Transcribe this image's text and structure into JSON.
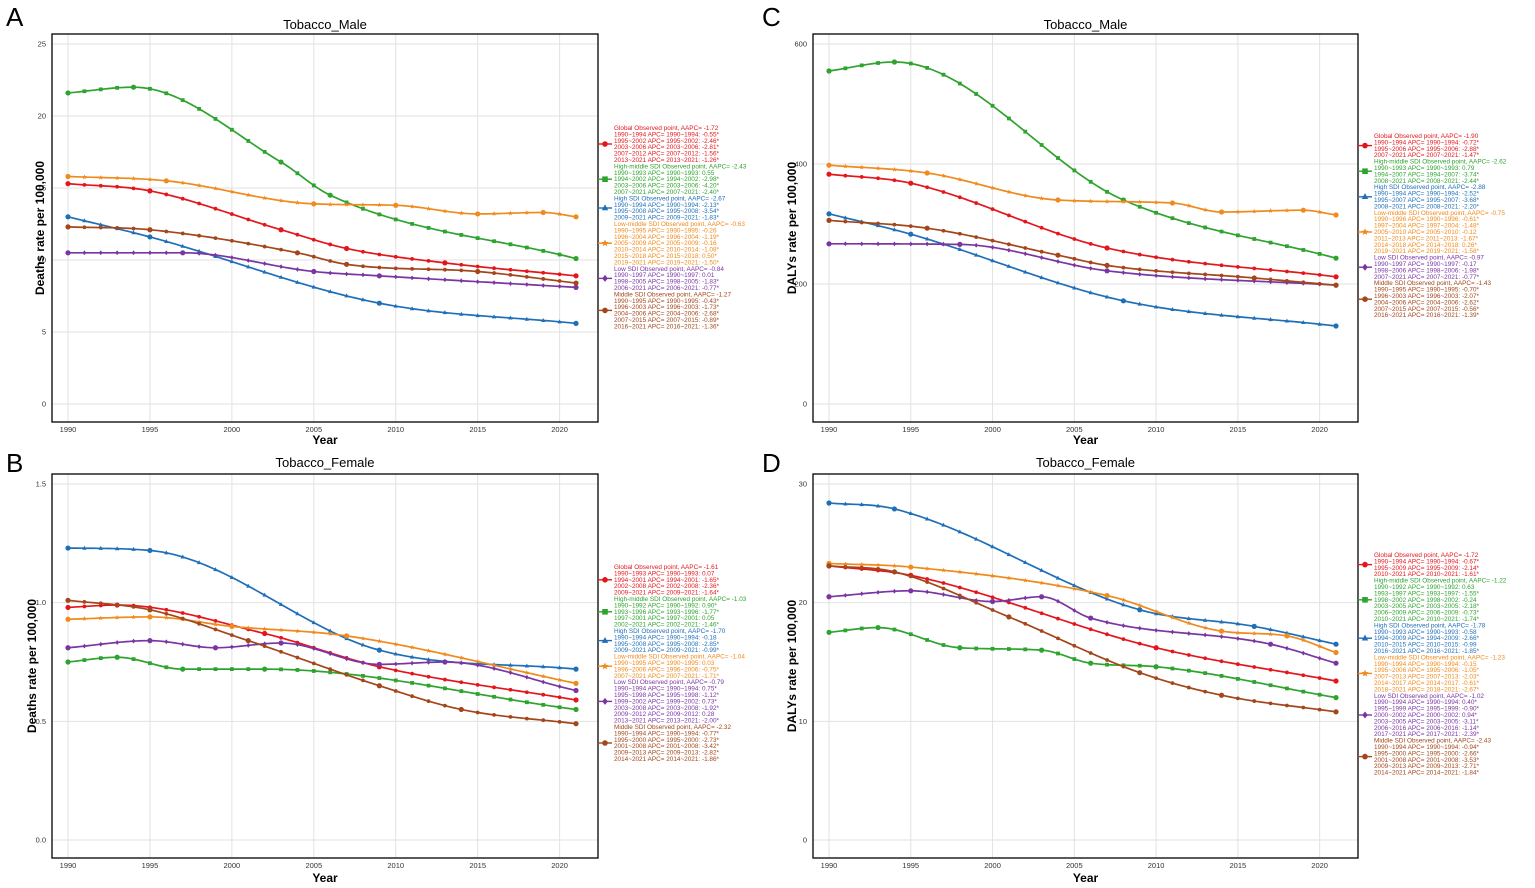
{
  "colors": {
    "Global": "#e4161c",
    "High-middle SDI": "#2ea32e",
    "High SDI": "#1f6fb8",
    "Low-middle SDI": "#f08a1c",
    "Low SDI": "#7a35a3",
    "Middle SDI": "#a3461a"
  },
  "chart_data": [
    {
      "id": "A",
      "panel_label": "A",
      "type": "line",
      "title": "Tobacco_Male",
      "xlabel": "Year",
      "ylabel": "Deaths rate per 100,000",
      "xlim": [
        1990,
        2021
      ],
      "ylim": [
        0,
        25
      ],
      "xticks": [
        1990,
        1995,
        2000,
        2005,
        2010,
        2015,
        2020
      ],
      "yticks": [
        0,
        5,
        10,
        15,
        20,
        25
      ],
      "series": [
        {
          "name": "Global",
          "x": [
            1990,
            1995,
            2003,
            2007,
            2013,
            2021
          ],
          "y": [
            15.3,
            14.8,
            12.1,
            10.8,
            9.8,
            8.9
          ]
        },
        {
          "name": "High-middle SDI",
          "x": [
            1990,
            1994,
            2003,
            2006,
            2021
          ],
          "y": [
            21.6,
            22.0,
            16.8,
            14.5,
            10.1
          ]
        },
        {
          "name": "High SDI",
          "x": [
            1990,
            1995,
            2009,
            2021
          ],
          "y": [
            13.0,
            11.6,
            7.0,
            5.6
          ]
        },
        {
          "name": "Low-middle SDI",
          "x": [
            1990,
            1996,
            2005,
            2010,
            2015,
            2019,
            2021
          ],
          "y": [
            15.8,
            15.5,
            13.9,
            13.8,
            13.2,
            13.3,
            13.0
          ]
        },
        {
          "name": "Low SDI",
          "x": [
            1990,
            1997,
            2005,
            2009,
            2021
          ],
          "y": [
            10.5,
            10.5,
            9.2,
            8.9,
            8.1
          ]
        },
        {
          "name": "Middle SDI",
          "x": [
            1990,
            1995,
            2004,
            2007,
            2015,
            2021
          ],
          "y": [
            12.3,
            12.1,
            10.5,
            9.7,
            9.2,
            8.4
          ]
        }
      ],
      "legend": [
        {
          "color": "Global",
          "lines": [
            "Global Observed point, AAPC= -1.72",
            "1990~1994 APC= 1990~1994: -0.55*",
            "1995~2002 APC= 1995~2002: -2.46*",
            "2003~2006 APC= 2003~2006: -2.81*",
            "2007~2012 APC= 2007~2012: -1.56*",
            "2013~2021 APC= 2013~2021: -1.26*"
          ]
        },
        {
          "color": "High-middle SDI",
          "lines": [
            "High-middle SDI Observed point, AAPC= -2.43",
            "1990~1993 APC= 1990~1993: 0.55",
            "1994~2002 APC= 1994~2002: -2.98*",
            "2003~2006 APC= 2003~2006: -4.20*",
            "2007~2021 APC= 2007~2021: -2.40*"
          ]
        },
        {
          "color": "High SDI",
          "lines": [
            "High SDI Observed point, AAPC= -2.67",
            "1990~1994 APC= 1990~1994: -2.13*",
            "1995~2008 APC= 1995~2008: -3.54*",
            "2009~2021 APC= 2009~2021: -1.83*"
          ]
        },
        {
          "color": "Low-middle SDI",
          "lines": [
            "Low-middle SDI Observed point, AAPC= -0.63",
            "1990~1995 APC= 1990~1995: -0.26",
            "1996~2004 APC= 1996~2004: -1.19*",
            "2005~2009 APC= 2005~2009: -0.16",
            "2010~2014 APC= 2010~2014: -1.08*",
            "2015~2018 APC= 2015~2018: 0.50*",
            "2019~2021 APC= 2019~2021: -1.50*"
          ]
        },
        {
          "color": "Low SDI",
          "lines": [
            "Low SDI Observed point, AAPC= -0.84",
            "1990~1997 APC= 1990~1997: 0.01",
            "1998~2005 APC= 1998~2005: -1.83*",
            "2006~2021 APC= 2006~2021: -0.77*"
          ]
        },
        {
          "color": "Middle SDI",
          "lines": [
            "Middle SDI Observed point, AAPC= -1.27",
            "1990~1995 APC= 1990~1995: -0.43*",
            "1996~2003 APC= 1996~2003: -1.73*",
            "2004~2006 APC= 2004~2006: -2.68*",
            "2007~2015 APC= 2007~2015: -0.89*",
            "2016~2021 APC= 2016~2021: -1.36*"
          ]
        }
      ]
    },
    {
      "id": "C",
      "panel_label": "C",
      "type": "line",
      "title": "Tobacco_Male",
      "xlabel": "Year",
      "ylabel": "DALYs rate per 100,000",
      "xlim": [
        1990,
        2021
      ],
      "ylim": [
        0,
        600
      ],
      "xticks": [
        1990,
        1995,
        2000,
        2005,
        2010,
        2015,
        2020
      ],
      "yticks": [
        0,
        200,
        400,
        600
      ],
      "series": [
        {
          "name": "Global",
          "x": [
            1990,
            1995,
            2007,
            2021
          ],
          "y": [
            383,
            368,
            260,
            212
          ]
        },
        {
          "name": "High-middle SDI",
          "x": [
            1990,
            1994,
            2008,
            2021
          ],
          "y": [
            555,
            570,
            340,
            243
          ]
        },
        {
          "name": "High SDI",
          "x": [
            1990,
            1995,
            2008,
            2021
          ],
          "y": [
            317,
            283,
            172,
            130
          ]
        },
        {
          "name": "Low-middle SDI",
          "x": [
            1990,
            1996,
            2004,
            2011,
            2014,
            2019,
            2021
          ],
          "y": [
            398,
            385,
            340,
            335,
            320,
            323,
            315
          ]
        },
        {
          "name": "Low SDI",
          "x": [
            1990,
            1998,
            2007,
            2021
          ],
          "y": [
            267,
            266,
            222,
            198
          ]
        },
        {
          "name": "Middle SDI",
          "x": [
            1990,
            1996,
            2004,
            2007,
            2016,
            2021
          ],
          "y": [
            306,
            293,
            248,
            231,
            210,
            198
          ]
        }
      ],
      "legend": [
        {
          "color": "Global",
          "lines": [
            "Global Observed point, AAPC= -1.90",
            "1990~1994 APC= 1990~1994: -0.72*",
            "1995~2006 APC= 1995~2006: -2.88*",
            "2007~2021 APC= 2007~2021: -1.47*"
          ]
        },
        {
          "color": "High-middle SDI",
          "lines": [
            "High-middle SDI Observed point, AAPC= -2.62",
            "1990~1993 APC= 1990~1993: 0.79",
            "1994~2007 APC= 1994~2007: -3.74*",
            "2008~2021 APC= 2008~2021: -2.44*"
          ]
        },
        {
          "color": "High SDI",
          "lines": [
            "High SDI Observed point, AAPC= -2.88",
            "1990~1994 APC= 1990~1994: -2.52*",
            "1995~2007 APC= 1995~2007: -3.68*",
            "2008~2021 APC= 2008~2021: -2.20*"
          ]
        },
        {
          "color": "Low-middle SDI",
          "lines": [
            "Low-middle SDI Observed point, AAPC= -0.75",
            "1990~1996 APC= 1990~1996: -0.61*",
            "1997~2004 APC= 1997~2004: -1.48*",
            "2005~2010 APC= 2005~2010: -0.12",
            "2011~2013 APC= 2011~2013: -1.67*",
            "2014~2018 APC= 2014~2018: 0.26*",
            "2019~2021 APC= 2019~2021: -1.58*"
          ]
        },
        {
          "color": "Low SDI",
          "lines": [
            "Low SDI Observed point, AAPC= -0.97",
            "1990~1997 APC= 1990~1997: -0.17",
            "1998~2006 APC= 1998~2006: -1.98*",
            "2007~2021 APC= 2007~2021: -0.77*"
          ]
        },
        {
          "color": "Middle SDI",
          "lines": [
            "Middle SDI Observed point, AAPC= -1.43",
            "1990~1995 APC= 1990~1995: -0.70*",
            "1996~2003 APC= 1996~2003: -2.07*",
            "2004~2006 APC= 2004~2006: -2.62*",
            "2007~2015 APC= 2007~2015: -0.56*",
            "2016~2021 APC= 2016~2021: -1.39*"
          ]
        }
      ]
    },
    {
      "id": "B",
      "panel_label": "B",
      "type": "line",
      "title": "Tobacco_Female",
      "xlabel": "Year",
      "ylabel": "Deaths rate per 100,000",
      "xlim": [
        1990,
        2021
      ],
      "ylim": [
        0,
        1.5
      ],
      "xticks": [
        1990,
        1995,
        2000,
        2005,
        2010,
        2015,
        2020
      ],
      "yticks": [
        0.0,
        0.5,
        1.0,
        1.5
      ],
      "tick_labels": [
        "0.0",
        "0.5",
        "1.0",
        "1.5"
      ],
      "series": [
        {
          "name": "Global",
          "x": [
            1990,
            1993,
            2002,
            2009,
            2021
          ],
          "y": [
            0.98,
            0.99,
            0.87,
            0.73,
            0.59
          ]
        },
        {
          "name": "High-middle SDI",
          "x": [
            1990,
            1993,
            1997,
            2002,
            2021
          ],
          "y": [
            0.75,
            0.77,
            0.72,
            0.72,
            0.55
          ]
        },
        {
          "name": "High SDI",
          "x": [
            1990,
            1995,
            2009,
            2021
          ],
          "y": [
            1.23,
            1.22,
            0.8,
            0.72
          ]
        },
        {
          "name": "Low-middle SDI",
          "x": [
            1990,
            1995,
            2000,
            2007,
            2021
          ],
          "y": [
            0.93,
            0.94,
            0.9,
            0.86,
            0.66
          ]
        },
        {
          "name": "Low SDI",
          "x": [
            1990,
            1995,
            1999,
            2003,
            2009,
            2013,
            2021
          ],
          "y": [
            0.81,
            0.84,
            0.81,
            0.83,
            0.74,
            0.75,
            0.63
          ]
        },
        {
          "name": "Middle SDI",
          "x": [
            1990,
            1995,
            2001,
            2009,
            2014,
            2021
          ],
          "y": [
            1.01,
            0.97,
            0.84,
            0.65,
            0.55,
            0.49
          ]
        }
      ],
      "legend": [
        {
          "color": "Global",
          "lines": [
            "Global Observed point, AAPC= -1.61",
            "1990~1993 APC= 1990~1993: 0.07",
            "1994~2001 APC= 1994~2001: -1.65*",
            "2002~2008 APC= 2002~2008: -2.36*",
            "2009~2021 APC= 2009~2021: -1.64*"
          ]
        },
        {
          "color": "High-middle SDI",
          "lines": [
            "High-middle SDI Observed point, AAPC= -1.03",
            "1990~1992 APC= 1990~1992: 0.90*",
            "1993~1996 APC= 1993~1996: -1.77*",
            "1997~2001 APC= 1997~2001: 0.05",
            "2002~2021 APC= 2002~2021: -1.46*"
          ]
        },
        {
          "color": "High SDI",
          "lines": [
            "High SDI Observed point, AAPC= -1.70",
            "1990~1994 APC= 1990~1994: -0.18",
            "1995~2008 APC= 1995~2008: -2.85*",
            "2009~2021 APC= 2009~2021: -0.99*"
          ]
        },
        {
          "color": "Low-middle SDI",
          "lines": [
            "Low-middle SDI Observed point, AAPC= -1.04",
            "1990~1995 APC= 1990~1995: 0.03",
            "1996~2006 APC= 1996~2006: -0.75*",
            "2007~2021 APC= 2007~2021: -1.71*"
          ]
        },
        {
          "color": "Low SDI",
          "lines": [
            "Low SDI Observed point, AAPC= -0.79",
            "1990~1994 APC= 1990~1994: 0.75*",
            "1995~1998 APC= 1995~1998: -1.12*",
            "1999~2002 APC= 1999~2002: 0.73*",
            "2003~2008 APC= 2003~2008: -1.92*",
            "2009~2012 APC= 2009~2012: 0.28",
            "2013~2021 APC= 2013~2021: -2.00*"
          ]
        },
        {
          "color": "Middle SDI",
          "lines": [
            "Middle SDI Observed point, AAPC= -2.32",
            "1990~1994 APC= 1990~1994: -0.77*",
            "1995~2000 APC= 1995~2000: -2.73*",
            "2001~2008 APC= 2001~2008: -3.42*",
            "2009~2013 APC= 2009~2013: -2.82*",
            "2014~2021 APC= 2014~2021: -1.86*"
          ]
        }
      ]
    },
    {
      "id": "D",
      "panel_label": "D",
      "type": "line",
      "title": "Tobacco_Female",
      "xlabel": "Year",
      "ylabel": "DALYs rate per 100,000",
      "xlim": [
        1990,
        2021
      ],
      "ylim": [
        0,
        30
      ],
      "xticks": [
        1990,
        1995,
        2000,
        2005,
        2010,
        2015,
        2020
      ],
      "yticks": [
        0,
        10,
        20,
        30
      ],
      "series": [
        {
          "name": "Global",
          "x": [
            1990,
            1995,
            2010,
            2021
          ],
          "y": [
            23.1,
            22.3,
            16.2,
            13.4
          ]
        },
        {
          "name": "High-middle SDI",
          "x": [
            1990,
            1993,
            1998,
            2003,
            2006,
            2010,
            2021
          ],
          "y": [
            17.5,
            17.9,
            16.2,
            16.0,
            14.9,
            14.6,
            12.0
          ]
        },
        {
          "name": "High SDI",
          "x": [
            1990,
            1994,
            2009,
            2016,
            2021
          ],
          "y": [
            28.4,
            27.9,
            19.4,
            18.0,
            16.5
          ]
        },
        {
          "name": "Low-middle SDI",
          "x": [
            1990,
            1995,
            2007,
            2014,
            2018,
            2021
          ],
          "y": [
            23.3,
            23.0,
            20.6,
            17.6,
            17.2,
            15.8
          ]
        },
        {
          "name": "Low SDI",
          "x": [
            1990,
            1995,
            2000,
            2003,
            2006,
            2017,
            2021
          ],
          "y": [
            20.5,
            21.0,
            20.1,
            20.5,
            18.7,
            16.5,
            14.9
          ]
        },
        {
          "name": "Middle SDI",
          "x": [
            1990,
            1994,
            2001,
            2009,
            2014,
            2021
          ],
          "y": [
            23.1,
            22.6,
            18.8,
            14.1,
            12.2,
            10.8
          ]
        }
      ],
      "legend": [
        {
          "color": "Global",
          "lines": [
            "Global Observed point, AAPC= -1.72",
            "1990~1994 APC= 1990~1994: -0.67*",
            "1995~2009 APC= 1995~2009: -2.14*",
            "2010~2021 APC= 2010~2021: -1.61*"
          ]
        },
        {
          "color": "High-middle SDI",
          "lines": [
            "High-middle SDI Observed point, AAPC= -1.22",
            "1990~1992 APC= 1990~1992: 0.63",
            "1993~1997 APC= 1993~1997: -1.55*",
            "1998~2002 APC= 1998~2002: -0.24",
            "2003~2005 APC= 2003~2005: -2.18*",
            "2006~2009 APC= 2006~2009: -0.73*",
            "2010~2021 APC= 2010~2021: -1.74*"
          ]
        },
        {
          "color": "High SDI",
          "lines": [
            "High SDI Observed point, AAPC= -1.78",
            "1990~1993 APC= 1990~1993: -0.58",
            "1994~2009 APC= 1994~2009: -2.66*",
            "2010~2015 APC= 2010~2015: -0.99",
            "2016~2021 APC= 2016~2021: -1.85*"
          ]
        },
        {
          "color": "Low-middle SDI",
          "lines": [
            "Low-middle SDI Observed point, AAPC= -1.23",
            "1990~1994 APC= 1990~1994: -0.15",
            "1995~2006 APC= 1995~2006: -1.05*",
            "2007~2013 APC= 2007~2013: -2.03*",
            "2014~2017 APC= 2014~2017: -0.61*",
            "2018~2021 APC= 2018~2021: -2.67*"
          ]
        },
        {
          "color": "Low SDI",
          "lines": [
            "Low SDI Observed point, AAPC= -1.02",
            "1990~1994 APC= 1990~1994: 0.40*",
            "1995~1999 APC= 1995~1999: -0.90*",
            "2000~2002 APC= 2000~2002: 0.94*",
            "2003~2005 APC= 2003~2005: -3.11*",
            "2006~2016 APC= 2006~2016: -1.14*",
            "2017~2021 APC= 2017~2021: -2.39*"
          ]
        },
        {
          "color": "Middle SDI",
          "lines": [
            "Middle SDI Observed point, AAPC= -2.43",
            "1990~1994 APC= 1990~1994: -0.94*",
            "1995~2000 APC= 1995~2000: -2.66*",
            "2001~2008 APC= 2001~2008: -3.53*",
            "2009~2013 APC= 2009~2013: -2.71*",
            "2014~2021 APC= 2014~2021: -1.84*"
          ]
        }
      ]
    }
  ]
}
